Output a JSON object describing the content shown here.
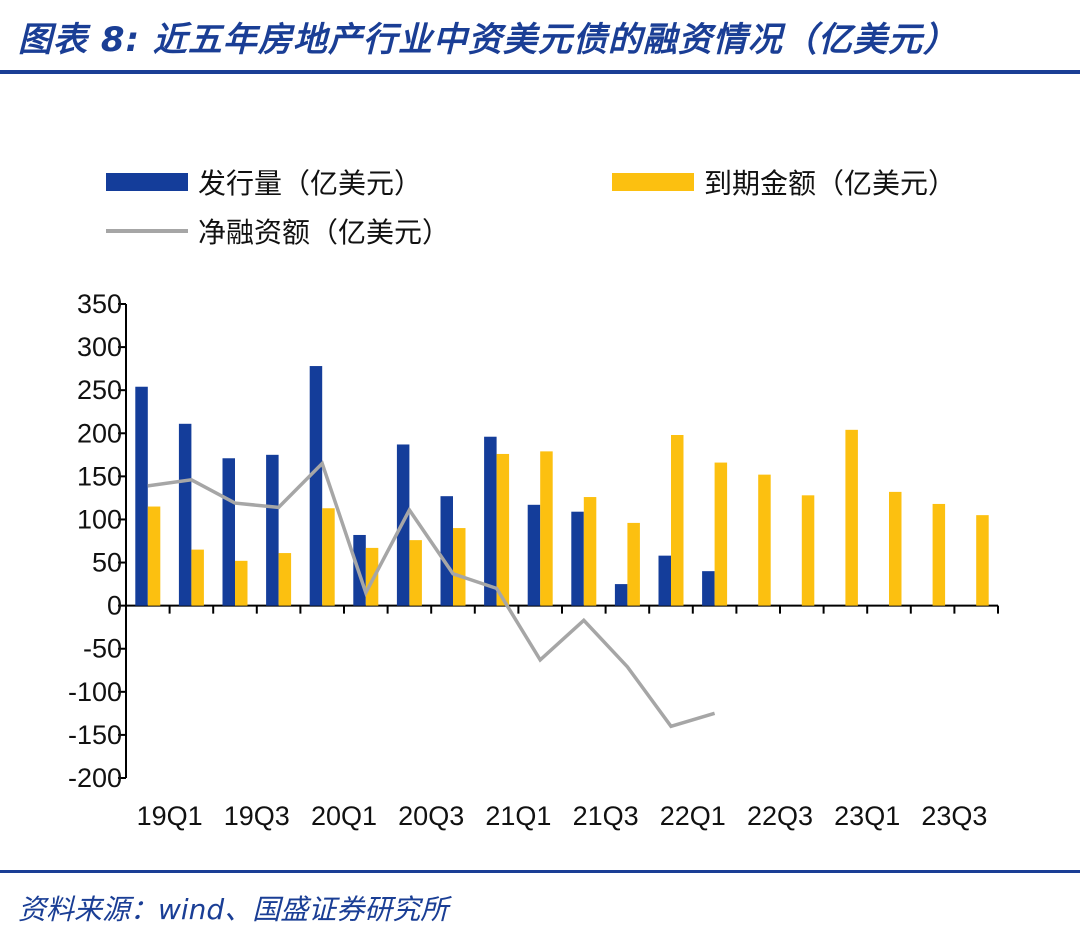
{
  "header": {
    "title": "图表 8:  近五年房地产行业中资美元债的融资情况（亿美元）"
  },
  "footer": {
    "source": "资料来源：wind、国盛证券研究所"
  },
  "colors": {
    "issuance": "#143d9a",
    "maturity": "#fcc010",
    "net": "#a6a6a6",
    "brand": "#1a3e95"
  },
  "chart_data": {
    "type": "bar",
    "categories": [
      "19Q1",
      "19Q2",
      "19Q3",
      "19Q4",
      "20Q1",
      "20Q2",
      "20Q3",
      "20Q4",
      "21Q1",
      "21Q2",
      "21Q3",
      "21Q4",
      "22Q1",
      "22Q2",
      "22Q3",
      "22Q4",
      "23Q1",
      "23Q2",
      "23Q3",
      "23Q4"
    ],
    "x_tick_labels": [
      "19Q1",
      "19Q3",
      "20Q1",
      "20Q3",
      "21Q1",
      "21Q3",
      "22Q1",
      "22Q3",
      "23Q1",
      "23Q3"
    ],
    "series": [
      {
        "name": "发行量（亿美元）",
        "type": "bar",
        "values": [
          254,
          211,
          171,
          175,
          278,
          82,
          187,
          127,
          196,
          117,
          109,
          25,
          58,
          40,
          null,
          null,
          null,
          null,
          null,
          null
        ]
      },
      {
        "name": "到期金额（亿美元）",
        "type": "bar",
        "values": [
          115,
          65,
          52,
          61,
          113,
          67,
          76,
          90,
          176,
          179,
          126,
          96,
          198,
          166,
          152,
          128,
          204,
          132,
          118,
          105
        ]
      },
      {
        "name": "净融资额（亿美元）",
        "type": "line",
        "values": [
          139,
          146,
          119,
          114,
          165,
          15,
          111,
          37,
          20,
          -63,
          -17,
          -71,
          -140,
          -125,
          null,
          null,
          null,
          null,
          null,
          null
        ]
      }
    ],
    "ylim": [
      -200,
      350
    ],
    "yticks": [
      350,
      300,
      250,
      200,
      150,
      100,
      50,
      0,
      -50,
      -100,
      -150,
      -200
    ],
    "grid": false,
    "legend": "top"
  }
}
